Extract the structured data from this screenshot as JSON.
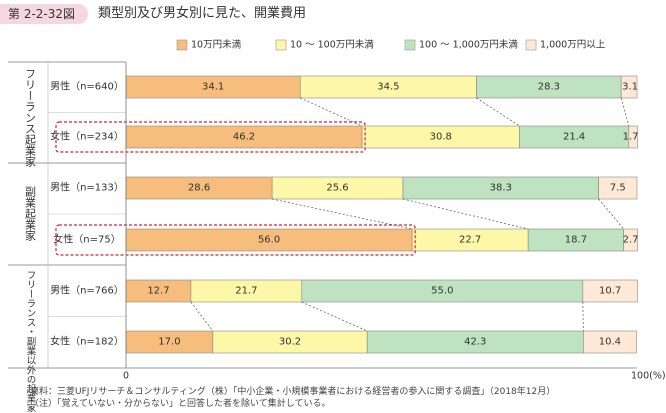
{
  "figure": {
    "label": "第 2-2-32図",
    "title": "類型別及び男女別に見た、開業費用"
  },
  "chart_data": {
    "type": "bar",
    "orientation": "horizontal",
    "stacked": true,
    "xlim": [
      0,
      100
    ],
    "x_tick_labels": {
      "start": "0",
      "end": "100(%)"
    },
    "legend_position": "top",
    "legend": [
      "10万円未満",
      "10 〜 100万円未満",
      "100 〜 1,000万円未満",
      "1,000万円以上"
    ],
    "colors": [
      "#f7bd7c",
      "#fdf7a8",
      "#bfe2c1",
      "#fde9d5"
    ],
    "groups": [
      {
        "name": "フリーランス起業家",
        "rows": [
          {
            "label": "男性（n=640）",
            "values": [
              34.1,
              34.5,
              28.3,
              3.1
            ],
            "value_labels": [
              "34.1",
              "34.5",
              "28.3",
              "3.1"
            ],
            "highlight": false
          },
          {
            "label": "女性（n=234）",
            "values": [
              46.2,
              30.8,
              21.4,
              1.7
            ],
            "value_labels": [
              "46.2",
              "30.8",
              "21.4",
              "1.7"
            ],
            "highlight": true
          }
        ]
      },
      {
        "name": "副業起業家",
        "rows": [
          {
            "label": "男性（n=133）",
            "values": [
              28.6,
              25.6,
              38.3,
              7.5
            ],
            "value_labels": [
              "28.6",
              "25.6",
              "38.3",
              "7.5"
            ],
            "highlight": false
          },
          {
            "label": "女性（n=75）",
            "values": [
              56.0,
              22.7,
              18.7,
              2.7
            ],
            "value_labels": [
              "56.0",
              "22.7",
              "18.7",
              "2.7"
            ],
            "highlight": true
          }
        ]
      },
      {
        "name": "フリーランス・副業以外の起業家",
        "rows": [
          {
            "label": "男性（n=766）",
            "values": [
              12.7,
              21.7,
              55.0,
              10.7
            ],
            "value_labels": [
              "12.7",
              "21.7",
              "55.0",
              "10.7"
            ],
            "highlight": false
          },
          {
            "label": "女性（n=182）",
            "values": [
              17.0,
              30.2,
              42.3,
              10.4
            ],
            "value_labels": [
              "17.0",
              "30.2",
              "42.3",
              "10.4"
            ],
            "highlight": false
          }
        ]
      }
    ]
  },
  "notes": {
    "source": "資料：三菱UFJリサーチ＆コンサルティング（株）「中小企業・小規模事業者における経営者の参入に関する調査」（2018年12月）",
    "note": "（注）「覚えていない・分からない」と回答した者を除いて集計している。"
  }
}
